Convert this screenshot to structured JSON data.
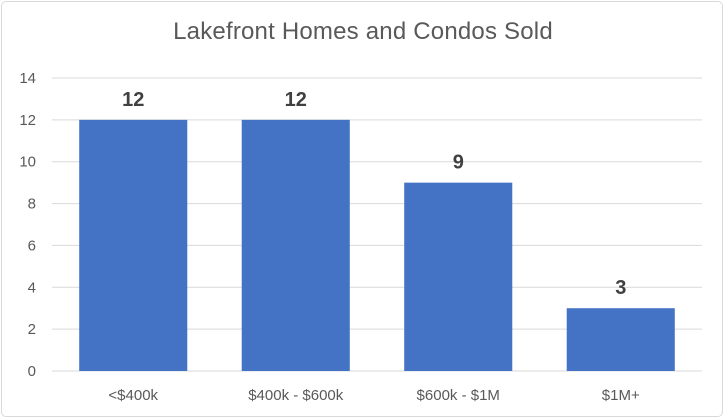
{
  "chart_data": {
    "type": "bar",
    "title": "Lakefront Homes and Condos Sold",
    "xlabel": "",
    "ylabel": "",
    "categories": [
      "<$400k",
      "$400k - $600k",
      "$600k - $1M",
      "$1M+"
    ],
    "values": [
      12,
      12,
      9,
      3
    ],
    "data_labels": [
      "12",
      "12",
      "9",
      "3"
    ],
    "ylim": [
      0,
      14
    ],
    "y_ticks": [
      "0",
      "2",
      "4",
      "6",
      "8",
      "10",
      "12",
      "14"
    ],
    "grid": true,
    "legend": "none",
    "bar_color": "#4472c4",
    "grid_color": "#d9d9d9",
    "axis_color": "#d9d9d9"
  }
}
